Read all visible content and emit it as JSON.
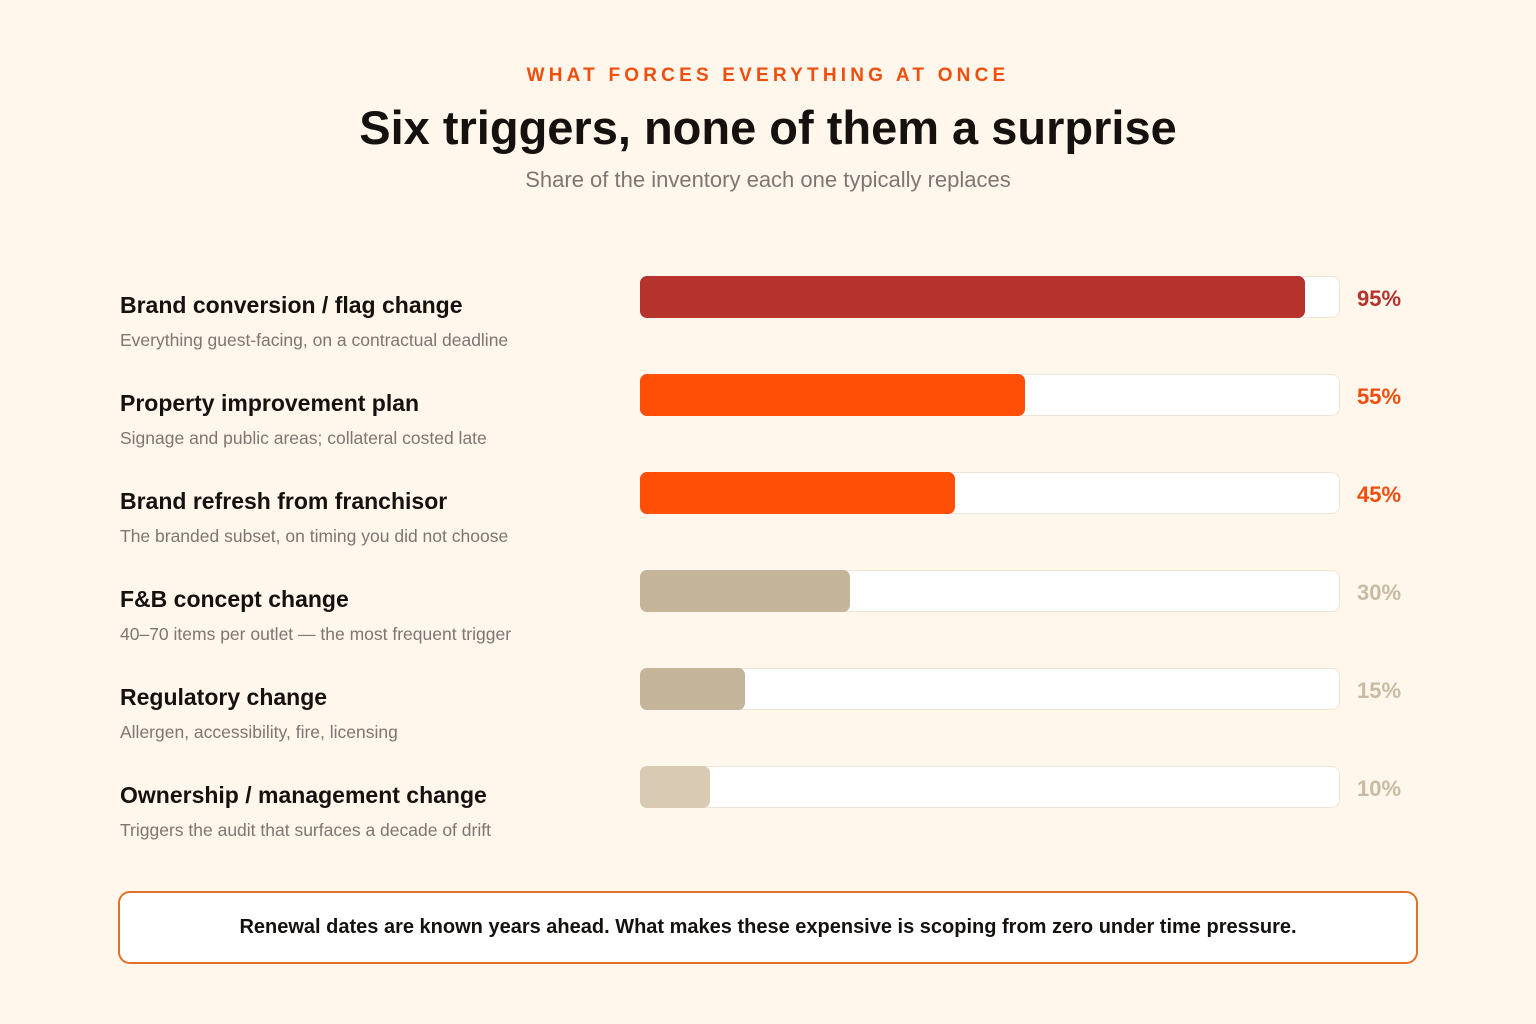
{
  "header": {
    "eyebrow": "WHAT FORCES EVERYTHING AT ONCE",
    "title": "Six triggers, none of them a surprise",
    "subtitle": "Share of the inventory each one typically replaces"
  },
  "chart_data": {
    "type": "bar",
    "orientation": "horizontal",
    "title": "Six triggers, none of them a surprise",
    "subtitle": "Share of the inventory each one typically replaces",
    "xlim": [
      0,
      100
    ],
    "unit": "%",
    "grid": false,
    "categories": [
      "Brand conversion / flag change",
      "Property improvement plan",
      "Brand refresh from franchisor",
      "F&B concept change",
      "Regulatory change",
      "Ownership / management change"
    ],
    "descriptions": [
      "Everything guest-facing, on a contractual deadline",
      "Signage and public areas; collateral costed late",
      "The branded subset, on timing you did not choose",
      "40–70 items per outlet — the most frequent trigger",
      "Allergen, accessibility, fire, licensing",
      "Triggers the audit that surfaces a decade of drift"
    ],
    "values": [
      95,
      55,
      45,
      30,
      15,
      10
    ],
    "value_labels": [
      "95%",
      "55%",
      "45%",
      "30%",
      "15%",
      "10%"
    ],
    "bar_colors": [
      "#b5332c",
      "#ff4e05",
      "#ff4e05",
      "#c4b49a",
      "#c4b49a",
      "#d9cab4"
    ],
    "label_colors": [
      "#b5332c",
      "#f04e0c",
      "#f04e0c",
      "#c9bba3",
      "#c9bba3",
      "#c9bba3"
    ]
  },
  "footer": {
    "note": "Renewal dates are known years ahead. What makes these expensive is scoping from zero under time pressure."
  }
}
